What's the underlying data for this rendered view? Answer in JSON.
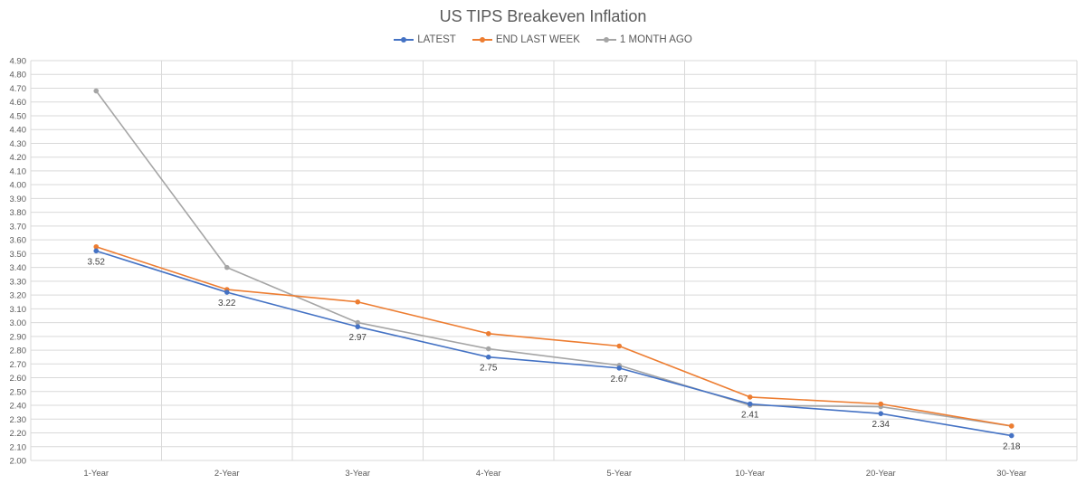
{
  "chart_data": {
    "type": "line",
    "title": "US TIPS Breakeven Inflation",
    "categories": [
      "1-Year",
      "2-Year",
      "3-Year",
      "4-Year",
      "5-Year",
      "10-Year",
      "20-Year",
      "30-Year"
    ],
    "series": [
      {
        "name": "LATEST",
        "color": "#4472C4",
        "values": [
          3.52,
          3.22,
          2.97,
          2.75,
          2.67,
          2.41,
          2.34,
          2.18
        ],
        "data_labels": [
          "3.52",
          "3.22",
          "2.97",
          "2.75",
          "2.67",
          "2.41",
          "2.34",
          "2.18"
        ]
      },
      {
        "name": "END LAST WEEK",
        "color": "#ED7D31",
        "values": [
          3.55,
          3.24,
          3.15,
          2.92,
          2.83,
          2.46,
          2.41,
          2.25
        ]
      },
      {
        "name": "1 MONTH AGO",
        "color": "#A5A5A5",
        "values": [
          4.68,
          3.4,
          3.0,
          2.81,
          2.69,
          2.4,
          2.39,
          2.25
        ]
      }
    ],
    "ylim": [
      2.0,
      4.9
    ],
    "y_tick_step": 0.1,
    "y_tick_labels": [
      "2.00",
      "2.10",
      "2.20",
      "2.30",
      "2.40",
      "2.50",
      "2.60",
      "2.70",
      "2.80",
      "2.90",
      "3.00",
      "3.10",
      "3.20",
      "3.30",
      "3.40",
      "3.50",
      "3.60",
      "3.70",
      "3.80",
      "3.90",
      "4.00",
      "4.10",
      "4.20",
      "4.30",
      "4.40",
      "4.50",
      "4.60",
      "4.70",
      "4.80",
      "4.90"
    ],
    "grid": true,
    "legend_position": "top-center",
    "xlabel": "",
    "ylabel": ""
  }
}
